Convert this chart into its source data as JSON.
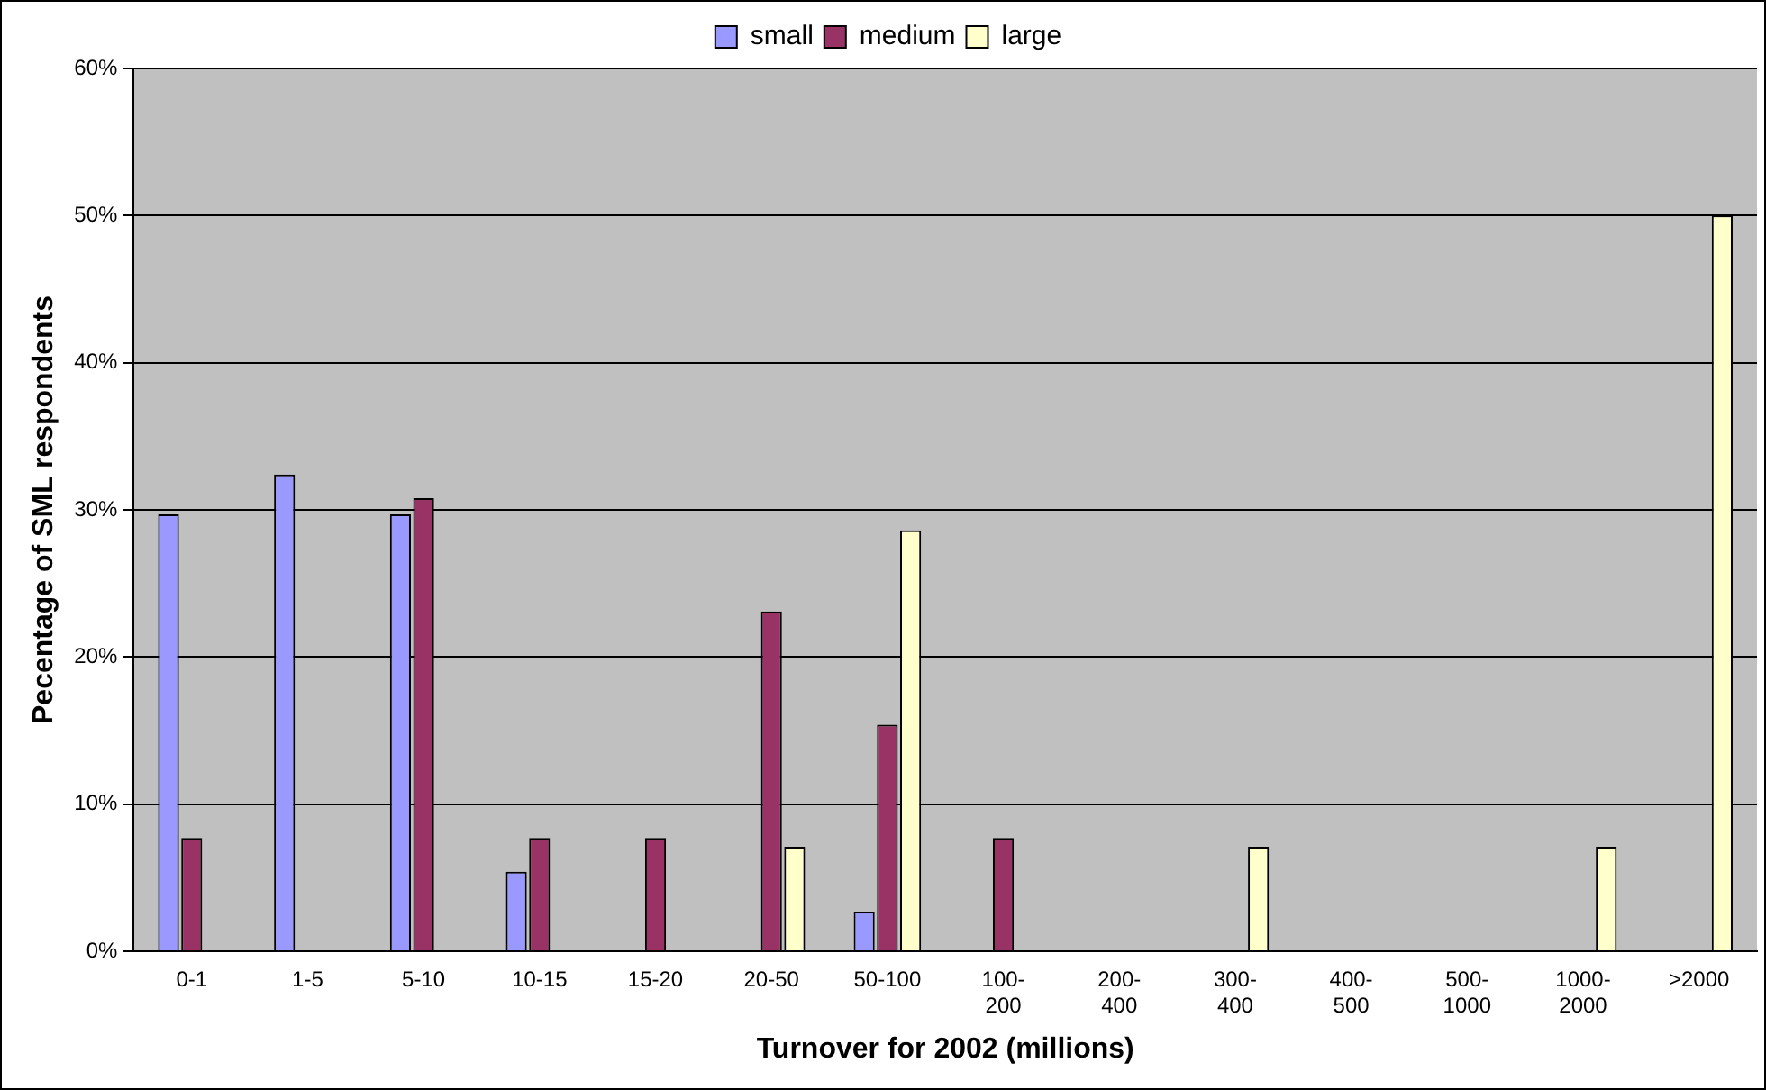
{
  "chart_data": {
    "type": "bar",
    "xlabel": "Turnover for 2002 (millions)",
    "ylabel": "Pecentage of SML respondents",
    "categories": [
      "0-1",
      "1-5",
      "5-10",
      "10-15",
      "15-20",
      "20-50",
      "50-100",
      "100-200",
      "200-400",
      "300-400",
      "400-500",
      "500-1000",
      "1000-2000",
      ">2000"
    ],
    "series": [
      {
        "name": "small",
        "color": "#9999ff",
        "values": [
          29.7,
          32.4,
          29.7,
          5.4,
          null,
          null,
          2.7,
          null,
          null,
          null,
          null,
          null,
          null,
          null
        ]
      },
      {
        "name": "medium",
        "color": "#993366",
        "values": [
          7.7,
          null,
          30.8,
          7.7,
          7.7,
          23.1,
          15.4,
          7.7,
          null,
          null,
          null,
          null,
          null,
          null
        ]
      },
      {
        "name": "large",
        "color": "#ffffcc",
        "values": [
          null,
          null,
          null,
          null,
          null,
          7.1,
          28.6,
          null,
          null,
          7.1,
          null,
          null,
          7.1,
          50
        ]
      }
    ],
    "ylim": [
      0,
      60
    ],
    "yticks": [
      {
        "value": 0,
        "label": "0%"
      },
      {
        "value": 10,
        "label": "10%"
      },
      {
        "value": 20,
        "label": "20%"
      },
      {
        "value": 30,
        "label": "30%"
      },
      {
        "value": 40,
        "label": "40%"
      },
      {
        "value": 50,
        "label": "50%"
      },
      {
        "value": 60,
        "label": "60%"
      }
    ],
    "grid": "y",
    "legend": "top"
  }
}
